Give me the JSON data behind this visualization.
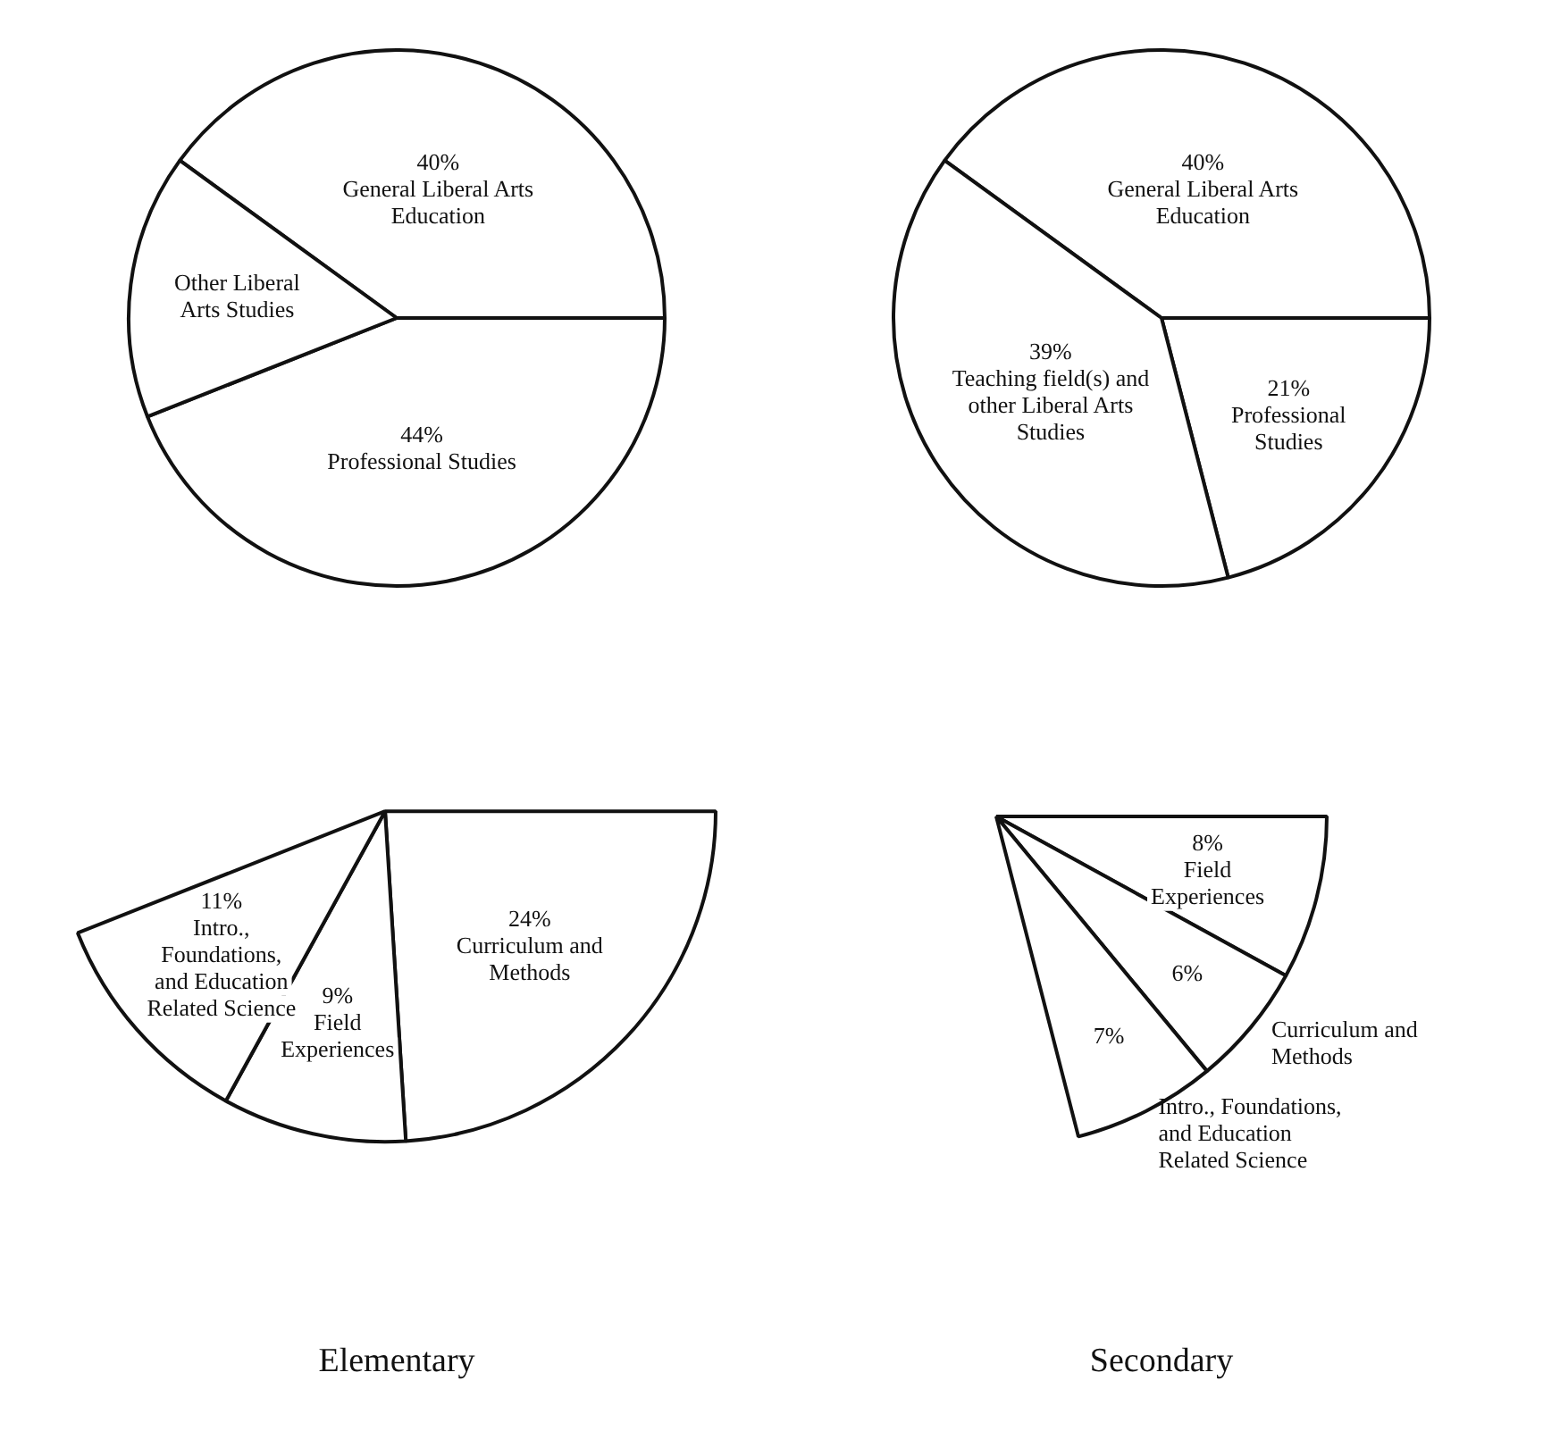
{
  "chart_data": [
    {
      "type": "pie",
      "categories": [
        "General Liberal Arts Education",
        "Professional Studies",
        "Other Liberal Arts Studies"
      ],
      "values": [
        40,
        44,
        16
      ],
      "value_labels": [
        "40%",
        "44%",
        null
      ],
      "colors": [
        "#ffffff",
        "#ffffff",
        "#ffffff"
      ]
    },
    {
      "type": "pie",
      "categories": [
        "General Liberal Arts Education",
        "Professional Studies",
        "Teaching field(s) and other Liberal Arts Studies"
      ],
      "values": [
        40,
        21,
        39
      ],
      "value_labels": [
        "40%",
        "21%",
        "39%"
      ],
      "colors": [
        "#ffffff",
        "#ffffff",
        "#ffffff"
      ]
    },
    {
      "type": "pie",
      "title": "Elementary",
      "categories": [
        "Curriculum and Methods",
        "Field Experiences",
        "Intro., Foundations, and Education Related Science"
      ],
      "values": [
        24,
        9,
        11
      ],
      "value_labels": [
        "24%",
        "9%",
        "11%"
      ],
      "colors": [
        "#ffffff",
        "#ffffff",
        "#ffffff"
      ]
    },
    {
      "type": "pie",
      "title": "Secondary",
      "categories": [
        "Field Experiences",
        "Curriculum and Methods",
        "Intro., Foundations, and Education Related Science"
      ],
      "values": [
        8,
        6,
        7
      ],
      "value_labels": [
        "8%",
        "6%",
        "7%"
      ],
      "colors": [
        "#ffffff",
        "#ffffff",
        "#ffffff"
      ]
    }
  ]
}
